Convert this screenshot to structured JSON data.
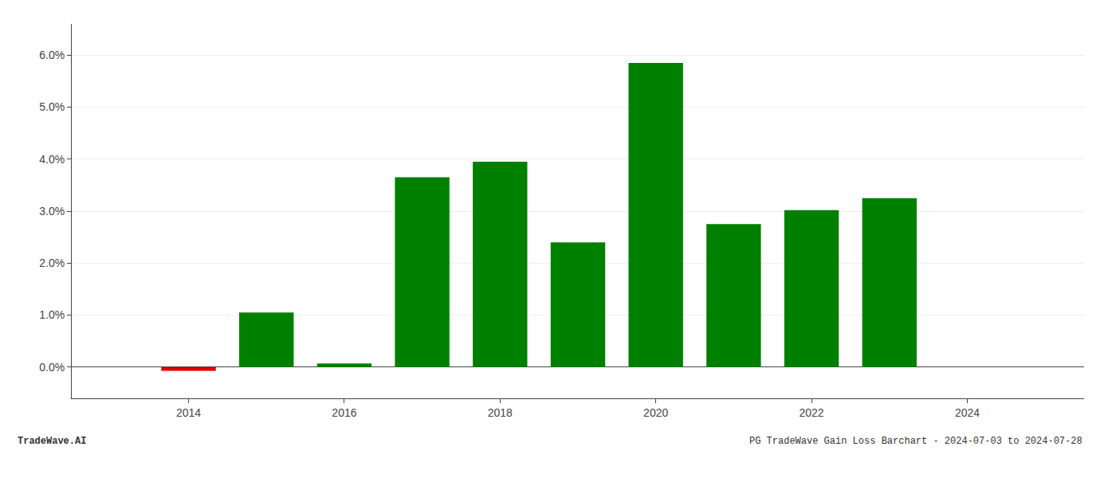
{
  "chart_data": {
    "type": "bar",
    "x": [
      2014,
      2015,
      2016,
      2017,
      2018,
      2019,
      2020,
      2021,
      2022,
      2023
    ],
    "values": [
      -0.0007,
      0.0105,
      0.0007,
      0.0365,
      0.0395,
      0.024,
      0.0585,
      0.0275,
      0.0302,
      0.0325
    ],
    "colors": [
      "#dd0000",
      "#008000",
      "#008000",
      "#008000",
      "#008000",
      "#008000",
      "#008000",
      "#008000",
      "#008000",
      "#008000"
    ],
    "xlim": [
      2012.5,
      2025.5
    ],
    "xticks": [
      2014,
      2016,
      2018,
      2020,
      2022,
      2024
    ],
    "ylim": [
      -0.006,
      0.066
    ],
    "yticks": [
      {
        "value": 0.0,
        "label": "0.0%"
      },
      {
        "value": 0.01,
        "label": "1.0%"
      },
      {
        "value": 0.02,
        "label": "2.0%"
      },
      {
        "value": 0.03,
        "label": "3.0%"
      },
      {
        "value": 0.04,
        "label": "4.0%"
      },
      {
        "value": 0.05,
        "label": "5.0%"
      },
      {
        "value": 0.06,
        "label": "6.0%"
      }
    ],
    "grid": true,
    "annotations": [
      "TradeWave.AI",
      "PG TradeWave Gain Loss Barchart - 2024-07-03 to 2024-07-28"
    ]
  }
}
